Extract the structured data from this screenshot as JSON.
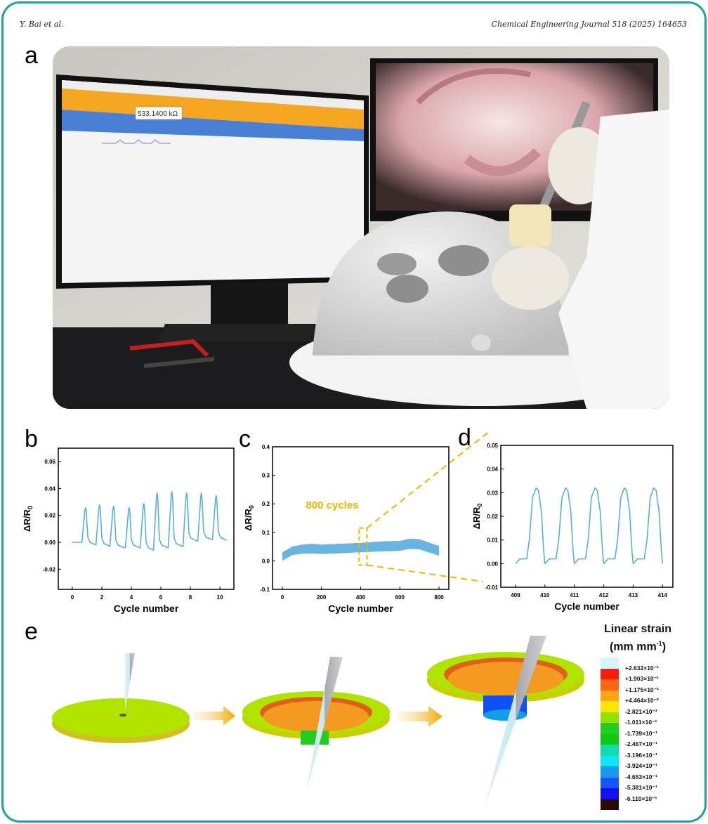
{
  "header": {
    "authors": "Y. Bai et al.",
    "journal": "Chemical Engineering Journal 518 (2025) 164653"
  },
  "panels": {
    "a": "a",
    "b": "b",
    "c": "c",
    "d": "d",
    "e": "e"
  },
  "photo": {
    "resistance_readout": "533.1400 kΩ"
  },
  "colors": {
    "frame": "#1ba39b",
    "series": "#5aaee0",
    "band": "#6ab4e2",
    "highlight": "#f5b400"
  },
  "chart_data": [
    {
      "id": "b",
      "type": "line",
      "xlabel": "Cycle number",
      "ylabel": "ΔR/R0",
      "xlim": [
        -0.95,
        10.95
      ],
      "ylim": [
        -0.035,
        0.07
      ],
      "xticks": [
        0,
        2,
        4,
        6,
        8,
        10
      ],
      "xtick_labels": [
        "0",
        "2",
        "4",
        "6",
        "8",
        "10"
      ],
      "yticks": [
        -0.02,
        0,
        0.02,
        0.04,
        0.06
      ],
      "ytick_labels": [
        "-0.02",
        "0.00",
        "0.02",
        "0.04",
        "0.06"
      ],
      "start": [
        0,
        0.0
      ],
      "peak_x": [
        0.9,
        1.85,
        2.8,
        3.85,
        4.85,
        5.75,
        6.75,
        7.75,
        8.75,
        9.75
      ],
      "peak_y": [
        0.026,
        0.028,
        0.027,
        0.026,
        0.029,
        0.037,
        0.038,
        0.037,
        0.037,
        0.035
      ],
      "trough_y": [
        -0.002,
        -0.003,
        -0.004,
        -0.004,
        -0.006,
        -0.004,
        -0.003,
        0.001,
        0.002,
        0.0015
      ],
      "end": [
        10,
        0.004
      ]
    },
    {
      "id": "c",
      "type": "area",
      "xlabel": "Cycle number",
      "ylabel": "ΔR/R0",
      "xlim": [
        -50,
        850
      ],
      "ylim": [
        -0.1,
        0.4
      ],
      "xticks": [
        0,
        200,
        400,
        600,
        800
      ],
      "xtick_labels": [
        "0",
        "200",
        "400",
        "600",
        "800"
      ],
      "yticks": [
        -0.1,
        0,
        0.1,
        0.2,
        0.3,
        0.4
      ],
      "ytick_labels": [
        "-0.1",
        "0.0",
        "0.1",
        "0.2",
        "0.3",
        "0.4"
      ],
      "x": [
        0,
        50,
        100,
        150,
        200,
        300,
        400,
        500,
        600,
        650,
        700,
        800
      ],
      "lower": [
        0.0,
        0.02,
        0.025,
        0.026,
        0.024,
        0.027,
        0.03,
        0.033,
        0.035,
        0.042,
        0.04,
        0.018
      ],
      "upper": [
        0.03,
        0.05,
        0.057,
        0.06,
        0.057,
        0.06,
        0.063,
        0.068,
        0.07,
        0.078,
        0.076,
        0.052
      ],
      "annotation": "800 cycles",
      "zoom_box_x": [
        392,
        432
      ],
      "zoom_box_y": [
        -0.015,
        0.115
      ]
    },
    {
      "id": "d",
      "type": "line",
      "xlabel": "Cycle number",
      "ylabel": "ΔR/R0",
      "xlim": [
        408.5,
        414.35
      ],
      "ylim": [
        -0.01,
        0.05
      ],
      "xticks": [
        409,
        410,
        411,
        412,
        413,
        414
      ],
      "xtick_labels": [
        "409",
        "410",
        "411",
        "412",
        "413",
        "414"
      ],
      "yticks": [
        -0.01,
        0,
        0.01,
        0.02,
        0.03,
        0.04,
        0.05
      ],
      "ytick_labels": [
        "-0.01",
        "0.00",
        "0.01",
        "0.02",
        "0.03",
        "0.04",
        "0.05"
      ],
      "peak_x": [
        409.7,
        410.7,
        411.7,
        412.7,
        413.7
      ],
      "peak_y": [
        0.032,
        0.032,
        0.032,
        0.032,
        0.032
      ],
      "plateau_y": 0.002,
      "trough_y": 0.0
    }
  ],
  "legend": {
    "title_line1": "Linear strain",
    "title_line2": "(mm mm",
    "title_sup": "-1",
    "title_close": ")",
    "colors": [
      "#d6f5fa",
      "#ff1a0a",
      "#ff6414",
      "#ffa514",
      "#ffe600",
      "#94e000",
      "#22cc22",
      "#10c810",
      "#10dcae",
      "#10e4fa",
      "#1898f0",
      "#1454fa",
      "#1010f0",
      "#2a0808"
    ],
    "labels": [
      "+2.632×10⁻¹",
      "+1.903×10⁻¹",
      "+1.175×10⁻¹",
      "+4.464×10⁻²",
      "-2.821×10⁻²",
      "-1.011×10⁻¹",
      "-1.739×10⁻¹",
      "-2.467×10⁻¹",
      "-3.196×10⁻¹",
      "-3.924×10⁻¹",
      "-4.653×10⁻¹",
      "-5.381×10⁻¹",
      "-6.110×10⁻¹"
    ]
  }
}
